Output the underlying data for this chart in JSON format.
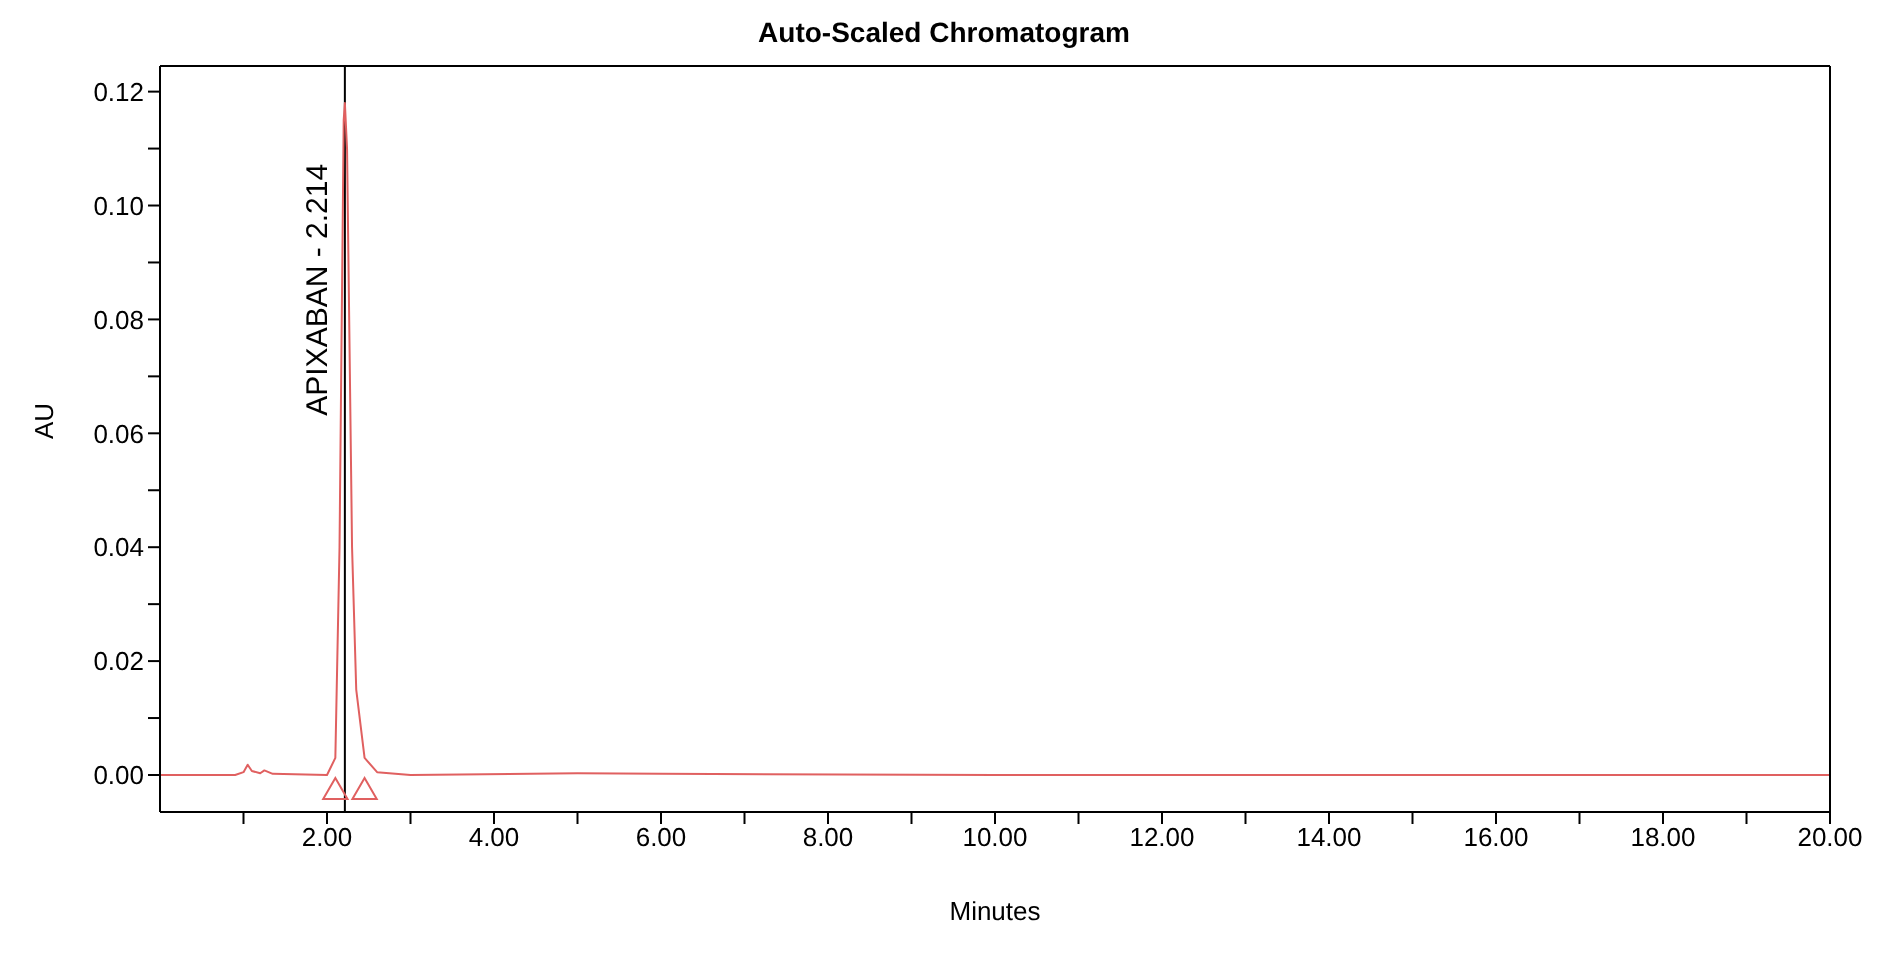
{
  "chart_data": {
    "type": "line",
    "title": "Auto-Scaled Chromatogram",
    "xlabel": "Minutes",
    "ylabel": "AU",
    "x": [
      0,
      0.9,
      1.0,
      1.05,
      1.1,
      1.2,
      1.25,
      1.35,
      2.0,
      2.1,
      2.15,
      2.2,
      2.214,
      2.24,
      2.3,
      2.35,
      2.45,
      2.6,
      3.0,
      5.0,
      6.0,
      10.0,
      20.0
    ],
    "series": [
      {
        "type": "line",
        "color": "#e06060",
        "marker": "none",
        "values": [
          0,
          0,
          0.0005,
          0.0018,
          0.0007,
          0.0003,
          0.0008,
          0.0002,
          0,
          0.003,
          0.04,
          0.115,
          0.118,
          0.11,
          0.04,
          0.015,
          0.003,
          0.0005,
          0,
          0.0003,
          0.0002,
          0,
          0
        ]
      },
      {
        "type": "scatter",
        "color": "#e06060",
        "marker": "triangle",
        "x": [
          2.1,
          2.45
        ],
        "values": [
          -0.003,
          -0.003
        ]
      }
    ],
    "xlim": [
      0,
      20
    ],
    "xticks": [
      {
        "value": 1,
        "label": null
      },
      {
        "value": 2,
        "label": "2.00"
      },
      {
        "value": 3,
        "label": null
      },
      {
        "value": 4,
        "label": "4.00"
      },
      {
        "value": 5,
        "label": null
      },
      {
        "value": 6,
        "label": "6.00"
      },
      {
        "value": 7,
        "label": null
      },
      {
        "value": 8,
        "label": "8.00"
      },
      {
        "value": 9,
        "label": null
      },
      {
        "value": 10,
        "label": "10.00"
      },
      {
        "value": 11,
        "label": null
      },
      {
        "value": 12,
        "label": "12.00"
      },
      {
        "value": 13,
        "label": null
      },
      {
        "value": 14,
        "label": "14.00"
      },
      {
        "value": 15,
        "label": null
      },
      {
        "value": 16,
        "label": "16.00"
      },
      {
        "value": 17,
        "label": null
      },
      {
        "value": 18,
        "label": "18.00"
      },
      {
        "value": 19,
        "label": null
      },
      {
        "value": 20,
        "label": "20.00"
      }
    ],
    "ylim": [
      -0.0065,
      0.1245
    ],
    "yticks": [
      {
        "value": 0,
        "label": "0.00"
      },
      {
        "value": 0.01,
        "label": null
      },
      {
        "value": 0.02,
        "label": "0.02"
      },
      {
        "value": 0.03,
        "label": null
      },
      {
        "value": 0.04,
        "label": "0.04"
      },
      {
        "value": 0.05,
        "label": null
      },
      {
        "value": 0.06,
        "label": "0.06"
      },
      {
        "value": 0.07,
        "label": null
      },
      {
        "value": 0.08,
        "label": "0.08"
      },
      {
        "value": 0.09,
        "label": null
      },
      {
        "value": 0.1,
        "label": "0.10"
      },
      {
        "value": 0.11,
        "label": null
      },
      {
        "value": 0.12,
        "label": "0.12"
      }
    ],
    "ref_lines": [
      {
        "axis": "x",
        "value": 2.214,
        "label": "APIXABAN - 2.214",
        "color": "#000000"
      }
    ],
    "grid": false,
    "legend": false
  }
}
